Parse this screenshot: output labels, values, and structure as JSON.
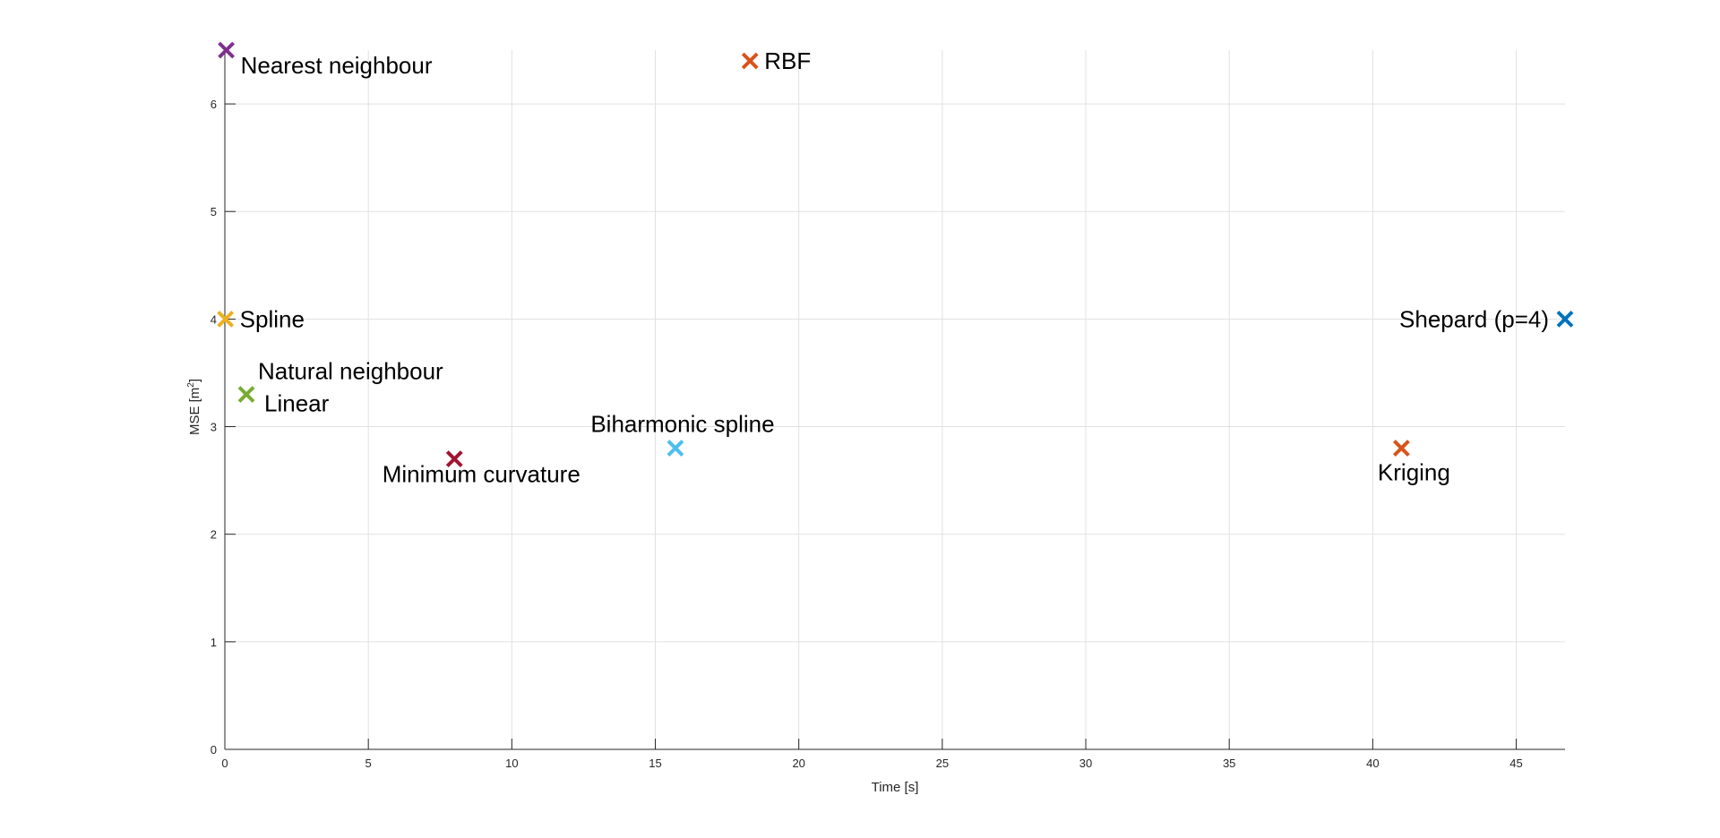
{
  "chart_data": {
    "type": "scatter",
    "title": "",
    "xlabel": "Time [s]",
    "ylabel_main": "MSE [m",
    "ylabel_sup": "2",
    "ylabel_close": "]",
    "xlim": [
      0,
      46.7
    ],
    "ylim": [
      0,
      6.5
    ],
    "grid": true,
    "xticks": [
      0,
      5,
      10,
      15,
      20,
      25,
      30,
      35,
      40,
      45
    ],
    "yticks": [
      0,
      1,
      2,
      3,
      4,
      5,
      6
    ],
    "points": [
      {
        "label": "Nearest neighbour",
        "x": 0.05,
        "y": 6.5,
        "color": "#7E2F8E",
        "anchor": "below-right"
      },
      {
        "label": "RBF",
        "x": 18.3,
        "y": 6.4,
        "color": "#D95319",
        "anchor": "right"
      },
      {
        "label": "Spline",
        "x": 0.02,
        "y": 4.0,
        "color": "#EDB120",
        "anchor": "right"
      },
      {
        "label": "Natural neighbour",
        "x": 0.75,
        "y": 3.3,
        "color": "#77AC30",
        "anchor": "above-right"
      },
      {
        "label": "Linear",
        "x": 0.75,
        "y": 3.3,
        "color": "#77AC30",
        "anchor": "below-right"
      },
      {
        "label": "Minimum curvature",
        "x": 8.0,
        "y": 2.7,
        "color": "#A2142F",
        "anchor": "below"
      },
      {
        "label": "Biharmonic spline",
        "x": 15.7,
        "y": 2.8,
        "color": "#4DBEEE",
        "anchor": "above"
      },
      {
        "label": "Shepard (p=4)",
        "x": 46.7,
        "y": 4.0,
        "color": "#0072BD",
        "anchor": "left"
      },
      {
        "label": "Kriging",
        "x": 41.0,
        "y": 2.8,
        "color": "#D95319",
        "anchor": "below"
      }
    ]
  }
}
